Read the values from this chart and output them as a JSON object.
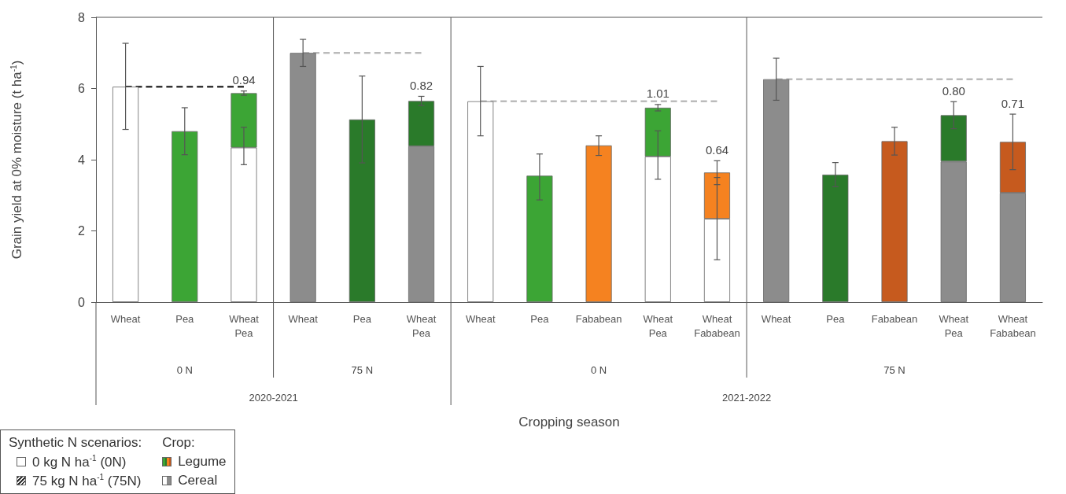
{
  "chart_data": {
    "type": "bar",
    "stacked": true,
    "ylabel": "Grain yield at 0% moisture (t ha$^{-1}$)",
    "ylim": [
      0,
      8
    ],
    "yticks": [
      0,
      2,
      4,
      6,
      8
    ],
    "legend": "bottom left",
    "legend_title": "Crop:",
    "categories": [
      "Wheat",
      "Pea",
      "Wheat Pea",
      "Wheat",
      "Pea",
      "Wheat Pea",
      "Wheat",
      "Pea",
      "Fababean",
      "Wheat Pea",
      "Wheat Fababean",
      "Wheat",
      "Pea",
      "Fababean",
      "Wheat Pea",
      "Wheat Fababean"
    ],
    "annotations": [
      "0 N",
      "75 N",
      "0 N",
      "75 N",
      "2020-2021",
      "2021-2022",
      "Cropping season",
      "Synthetic N scenarios:",
      "0 kg N ha$^{-1}$ (0N)",
      "75 kg N ha$^{-1}$ (75N)",
      "0.94",
      "0.82",
      "1.01",
      "0.64",
      "0.80",
      "0.71"
    ],
    "series": [
      {
        "name": "Cereal",
        "color": "#ffffff",
        "colors": [
          "#ffffff",
          null,
          "#ffffff",
          "#8c8c8c",
          null,
          "#8c8c8c",
          "#ffffff",
          null,
          null,
          "#ffffff",
          "#ffffff",
          "#8c8c8c",
          null,
          null,
          "#8c8c8c",
          "#8c8c8c"
        ],
        "values": [
          6.05,
          null,
          4.34,
          7.0,
          null,
          4.38,
          5.64,
          null,
          null,
          4.09,
          2.34,
          6.26,
          null,
          null,
          3.95,
          3.07
        ],
        "errors": [
          [
            4.85,
            7.27
          ],
          null,
          [
            3.86,
            4.91
          ],
          [
            6.62,
            7.38
          ],
          null,
          null,
          [
            4.67,
            6.62
          ],
          null,
          null,
          [
            3.45,
            4.81
          ],
          [
            1.19,
            3.5
          ],
          [
            5.67,
            6.85
          ],
          null,
          null,
          null,
          null
        ]
      },
      {
        "name": "Legume",
        "color": "#3ca535",
        "colors": [
          null,
          "#3ca535",
          "#3ca535",
          null,
          "#2a7a2a",
          "#2a7a2a",
          null,
          "#3ca535",
          "#f58220",
          "#3ca535",
          "#f58220",
          null,
          "#2a7a2a",
          "#c65a1e",
          "#2a7a2a",
          "#c65a1e"
        ],
        "values": [
          null,
          4.8,
          1.53,
          null,
          5.13,
          1.27,
          null,
          3.55,
          4.4,
          1.37,
          1.3,
          null,
          3.58,
          4.52,
          1.3,
          1.43
        ],
        "errors": [
          null,
          [
            4.14,
            5.46
          ],
          [
            5.81,
            5.93
          ],
          null,
          [
            3.91,
            6.35
          ],
          [
            5.52,
            5.78
          ],
          null,
          [
            2.87,
            4.16
          ],
          [
            4.12,
            4.67
          ],
          [
            5.37,
            5.55
          ],
          [
            3.3,
            3.97
          ],
          null,
          [
            3.24,
            3.92
          ],
          [
            4.13,
            4.91
          ],
          [
            4.87,
            5.63
          ],
          [
            3.72,
            5.28
          ]
        ]
      },
      {
        "type": "line",
        "color": "#333333",
        "line_style": "dashed",
        "marker": "none",
        "values": [
          6.05,
          6.05,
          6.05,
          null,
          null,
          null,
          null,
          null,
          null,
          null,
          null,
          null,
          null,
          null,
          null,
          null
        ]
      },
      {
        "type": "line",
        "color": "#bbbbbb",
        "line_style": "dashed",
        "marker": "none",
        "values": [
          null,
          null,
          null,
          7.0,
          7.0,
          7.0,
          null,
          null,
          null,
          null,
          null,
          null,
          null,
          null,
          null,
          null
        ]
      },
      {
        "type": "line",
        "color": "#bbbbbb",
        "line_style": "dashed",
        "marker": "none",
        "values": [
          null,
          null,
          null,
          null,
          null,
          null,
          5.64,
          5.64,
          5.64,
          5.64,
          5.64,
          null,
          null,
          null,
          null,
          null
        ]
      },
      {
        "type": "line",
        "color": "#bbbbbb",
        "line_style": "dashed",
        "marker": "none",
        "values": [
          null,
          null,
          null,
          null,
          null,
          null,
          null,
          null,
          null,
          null,
          null,
          6.26,
          6.26,
          6.26,
          6.26,
          6.26
        ]
      }
    ]
  }
}
